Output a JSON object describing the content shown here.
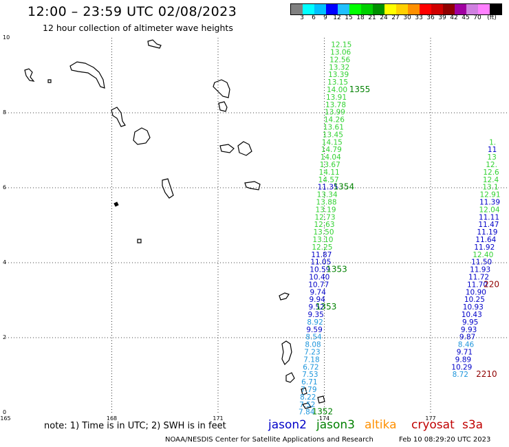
{
  "title": "12:00 – 23:59 UTC 02/08/2023",
  "subtitle": "12 hour collection of altimeter wave heights",
  "colorbar": {
    "colors": [
      "#808080",
      "#00ffff",
      "#00c0ff",
      "#0000ff",
      "#20c0ff",
      "#00ff00",
      "#00d000",
      "#009000",
      "#ffff00",
      "#ffd000",
      "#ff9000",
      "#ff0000",
      "#d00000",
      "#900000",
      "#a000a0",
      "#d080e0",
      "#ff80ff",
      "#000000"
    ],
    "labels": [
      "3",
      "6",
      "9",
      "12",
      "15",
      "18",
      "21",
      "24",
      "27",
      "30",
      "33",
      "36",
      "39",
      "42",
      "45",
      "70",
      "(ft)"
    ]
  },
  "axes": {
    "x_ticks": [
      "165",
      "168",
      "171",
      "174",
      "177"
    ],
    "y_ticks": [
      "0",
      "2",
      "4",
      "6",
      "8",
      "10"
    ]
  },
  "note": "note:  1) Time is in UTC;  2) SWH is in feet",
  "satellites": [
    {
      "name": "jason2",
      "color": "#0000c8"
    },
    {
      "name": "jason3",
      "color": "#008000"
    },
    {
      "name": "altika",
      "color": "#ff9000"
    },
    {
      "name": "cryosat",
      "color": "#c00000"
    },
    {
      "name": "s3a",
      "color": "#c00000"
    }
  ],
  "footer_left": "NOAA/NESDIS Center for Satellite Applications and Research",
  "footer_right": "Feb 10 08:29:20 UTC 2023",
  "tracks": [
    {
      "name": "main",
      "points": [
        {
          "lon": 174.48,
          "lat": 9.75,
          "v": "12.15",
          "c": "#32d232"
        },
        {
          "lon": 174.46,
          "lat": 9.55,
          "v": "13.06",
          "c": "#32d232"
        },
        {
          "lon": 174.44,
          "lat": 9.35,
          "v": "12.56",
          "c": "#32d232"
        },
        {
          "lon": 174.42,
          "lat": 9.15,
          "v": "13.32",
          "c": "#32d232"
        },
        {
          "lon": 174.4,
          "lat": 8.95,
          "v": "13.39",
          "c": "#32d232"
        },
        {
          "lon": 174.38,
          "lat": 8.75,
          "v": "13.15",
          "c": "#32d232"
        },
        {
          "lon": 174.36,
          "lat": 8.55,
          "v": "14.00",
          "c": "#32d232"
        },
        {
          "lon": 174.34,
          "lat": 8.35,
          "v": "13.91",
          "c": "#32d232"
        },
        {
          "lon": 174.32,
          "lat": 8.15,
          "v": "13.78",
          "c": "#32d232"
        },
        {
          "lon": 174.3,
          "lat": 7.95,
          "v": "13.99",
          "c": "#32d232"
        },
        {
          "lon": 174.28,
          "lat": 7.75,
          "v": "14.26",
          "c": "#32d232"
        },
        {
          "lon": 174.26,
          "lat": 7.55,
          "v": "13.61",
          "c": "#32d232"
        },
        {
          "lon": 174.24,
          "lat": 7.35,
          "v": "13.45",
          "c": "#32d232"
        },
        {
          "lon": 174.22,
          "lat": 7.15,
          "v": "14.15",
          "c": "#32d232"
        },
        {
          "lon": 174.2,
          "lat": 6.95,
          "v": "14.79",
          "c": "#32d232"
        },
        {
          "lon": 174.18,
          "lat": 6.75,
          "v": "14.04",
          "c": "#32d232"
        },
        {
          "lon": 174.16,
          "lat": 6.55,
          "v": "13.67",
          "c": "#32d232"
        },
        {
          "lon": 174.14,
          "lat": 6.35,
          "v": "14.11",
          "c": "#32d232"
        },
        {
          "lon": 174.12,
          "lat": 6.15,
          "v": "14.57",
          "c": "#32d232"
        },
        {
          "lon": 174.1,
          "lat": 5.95,
          "v": "11.35",
          "c": "#0000c8"
        },
        {
          "lon": 174.08,
          "lat": 5.75,
          "v": "13.34",
          "c": "#32d232"
        },
        {
          "lon": 174.06,
          "lat": 5.55,
          "v": "13.88",
          "c": "#32d232"
        },
        {
          "lon": 174.04,
          "lat": 5.35,
          "v": "13.19",
          "c": "#32d232"
        },
        {
          "lon": 174.02,
          "lat": 5.15,
          "v": "12.73",
          "c": "#32d232"
        },
        {
          "lon": 174.0,
          "lat": 4.95,
          "v": "12.63",
          "c": "#32d232"
        },
        {
          "lon": 173.98,
          "lat": 4.75,
          "v": "13.50",
          "c": "#32d232"
        },
        {
          "lon": 173.96,
          "lat": 4.55,
          "v": "13.10",
          "c": "#32d232"
        },
        {
          "lon": 173.94,
          "lat": 4.35,
          "v": "12.25",
          "c": "#32d232"
        },
        {
          "lon": 173.92,
          "lat": 4.15,
          "v": "11.87",
          "c": "#0000c8"
        },
        {
          "lon": 173.9,
          "lat": 3.95,
          "v": "11.05",
          "c": "#0000c8"
        },
        {
          "lon": 173.88,
          "lat": 3.75,
          "v": "10.59",
          "c": "#0000c8"
        },
        {
          "lon": 173.86,
          "lat": 3.55,
          "v": "10.40",
          "c": "#0000c8"
        },
        {
          "lon": 173.84,
          "lat": 3.35,
          "v": "10.77",
          "c": "#0000c8"
        },
        {
          "lon": 173.82,
          "lat": 3.15,
          "v": "9.74",
          "c": "#0000c8"
        },
        {
          "lon": 173.8,
          "lat": 2.95,
          "v": "9.94",
          "c": "#0000c8"
        },
        {
          "lon": 173.78,
          "lat": 2.75,
          "v": "9.52",
          "c": "#0000c8"
        },
        {
          "lon": 173.76,
          "lat": 2.55,
          "v": "9.35",
          "c": "#0000c8"
        },
        {
          "lon": 173.74,
          "lat": 2.35,
          "v": "8.92",
          "c": "#1e96dc"
        },
        {
          "lon": 173.72,
          "lat": 2.15,
          "v": "9.59",
          "c": "#0000c8"
        },
        {
          "lon": 173.7,
          "lat": 1.95,
          "v": "8.54",
          "c": "#1e96dc"
        },
        {
          "lon": 173.68,
          "lat": 1.75,
          "v": "8.08",
          "c": "#1e96dc"
        },
        {
          "lon": 173.66,
          "lat": 1.55,
          "v": "7.23",
          "c": "#1e96dc"
        },
        {
          "lon": 173.64,
          "lat": 1.35,
          "v": "7.18",
          "c": "#1e96dc"
        },
        {
          "lon": 173.62,
          "lat": 1.15,
          "v": "6.72",
          "c": "#1e96dc"
        },
        {
          "lon": 173.6,
          "lat": 0.95,
          "v": "7.53",
          "c": "#1e96dc"
        },
        {
          "lon": 173.58,
          "lat": 0.75,
          "v": "6.71",
          "c": "#1e96dc"
        },
        {
          "lon": 173.56,
          "lat": 0.55,
          "v": "7.79",
          "c": "#1e96dc"
        },
        {
          "lon": 173.54,
          "lat": 0.35,
          "v": "8.22",
          "c": "#1e96dc"
        },
        {
          "lon": 173.52,
          "lat": 0.15,
          "v": "7.52",
          "c": "#1e96dc"
        },
        {
          "lon": 173.5,
          "lat": -0.05,
          "v": "7.84",
          "c": "#1e96dc"
        }
      ]
    },
    {
      "name": "east",
      "points": [
        {
          "lon": 178.75,
          "lat": 7.15,
          "v": "1.",
          "c": "#32d232"
        },
        {
          "lon": 178.74,
          "lat": 6.95,
          "v": "11",
          "c": "#0000c8"
        },
        {
          "lon": 178.73,
          "lat": 6.75,
          "v": "13",
          "c": "#32d232"
        },
        {
          "lon": 178.72,
          "lat": 6.55,
          "v": "12.",
          "c": "#32d232"
        },
        {
          "lon": 178.71,
          "lat": 6.35,
          "v": "12.6",
          "c": "#32d232"
        },
        {
          "lon": 178.7,
          "lat": 6.15,
          "v": "12.4",
          "c": "#32d232"
        },
        {
          "lon": 178.69,
          "lat": 5.95,
          "v": "13.1",
          "c": "#32d232"
        },
        {
          "lon": 178.68,
          "lat": 5.75,
          "v": "12.91",
          "c": "#32d232"
        },
        {
          "lon": 178.67,
          "lat": 5.55,
          "v": "11.39",
          "c": "#0000c8"
        },
        {
          "lon": 178.66,
          "lat": 5.35,
          "v": "12.04",
          "c": "#32d232"
        },
        {
          "lon": 178.65,
          "lat": 5.15,
          "v": "11.11",
          "c": "#0000c8"
        },
        {
          "lon": 178.64,
          "lat": 4.95,
          "v": "11.47",
          "c": "#0000c8"
        },
        {
          "lon": 178.6,
          "lat": 4.75,
          "v": "11.19",
          "c": "#0000c8"
        },
        {
          "lon": 178.56,
          "lat": 4.55,
          "v": "11.64",
          "c": "#0000c8"
        },
        {
          "lon": 178.52,
          "lat": 4.35,
          "v": "11.92",
          "c": "#0000c8"
        },
        {
          "lon": 178.48,
          "lat": 4.15,
          "v": "12.40",
          "c": "#32d232"
        },
        {
          "lon": 178.44,
          "lat": 3.95,
          "v": "11.50",
          "c": "#0000c8"
        },
        {
          "lon": 178.4,
          "lat": 3.75,
          "v": "11.93",
          "c": "#0000c8"
        },
        {
          "lon": 178.36,
          "lat": 3.55,
          "v": "11.72",
          "c": "#0000c8"
        },
        {
          "lon": 178.32,
          "lat": 3.35,
          "v": "11.70",
          "c": "#0000c8"
        },
        {
          "lon": 178.28,
          "lat": 3.15,
          "v": "10.90",
          "c": "#0000c8"
        },
        {
          "lon": 178.24,
          "lat": 2.95,
          "v": "10.25",
          "c": "#0000c8"
        },
        {
          "lon": 178.2,
          "lat": 2.75,
          "v": "10.93",
          "c": "#0000c8"
        },
        {
          "lon": 178.16,
          "lat": 2.55,
          "v": "10.43",
          "c": "#0000c8"
        },
        {
          "lon": 178.12,
          "lat": 2.35,
          "v": "9.95",
          "c": "#0000c8"
        },
        {
          "lon": 178.08,
          "lat": 2.15,
          "v": "9.93",
          "c": "#0000c8"
        },
        {
          "lon": 178.04,
          "lat": 1.95,
          "v": "9.87",
          "c": "#0000c8"
        },
        {
          "lon": 178.0,
          "lat": 1.75,
          "v": "8.46",
          "c": "#1e96dc"
        },
        {
          "lon": 177.96,
          "lat": 1.55,
          "v": "9.71",
          "c": "#0000c8"
        },
        {
          "lon": 177.92,
          "lat": 1.35,
          "v": "9.89",
          "c": "#0000c8"
        },
        {
          "lon": 177.88,
          "lat": 1.15,
          "v": "10.29",
          "c": "#0000c8"
        },
        {
          "lon": 177.84,
          "lat": 0.95,
          "v": "8.72",
          "c": "#1e96dc"
        }
      ]
    }
  ],
  "time_labels": [
    {
      "lon": 175.0,
      "lat": 8.55,
      "v": "1355",
      "c": "#008000"
    },
    {
      "lon": 174.55,
      "lat": 5.95,
      "v": "1354",
      "c": "#008000"
    },
    {
      "lon": 174.35,
      "lat": 3.75,
      "v": "1353",
      "c": "#008000"
    },
    {
      "lon": 174.05,
      "lat": 2.75,
      "v": "1353",
      "c": "#008000"
    },
    {
      "lon": 173.95,
      "lat": -0.05,
      "v": "1352",
      "c": "#008000"
    },
    {
      "lon": 178.72,
      "lat": 3.35,
      "v": "220",
      "c": "#900000"
    },
    {
      "lon": 178.58,
      "lat": 0.95,
      "v": "2210",
      "c": "#900000"
    }
  ]
}
